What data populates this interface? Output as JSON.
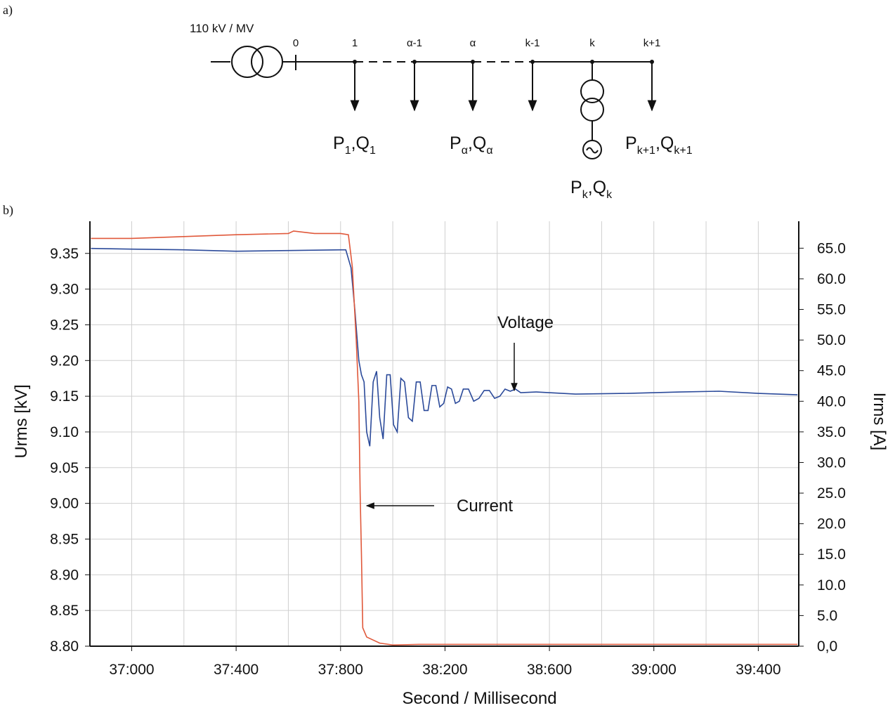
{
  "figure": {
    "panel_a": "a)",
    "panel_b": "b)"
  },
  "diagram": {
    "transformer": "110 kV / MV",
    "nodes": [
      "0",
      "1",
      "α-1",
      "α",
      "k-1",
      "k",
      "k+1"
    ],
    "loads": [
      {
        "p": "P",
        "p_sub": "1",
        "q": ",Q",
        "q_sub": "1"
      },
      {
        "p": "P",
        "p_sub": "α",
        "q": ",Q",
        "q_sub": "α"
      },
      {
        "p": "P",
        "p_sub": "k",
        "q": ",Q",
        "q_sub": "k"
      },
      {
        "p": "P",
        "p_sub": "k+1",
        "q": ",Q",
        "q_sub": "k+1"
      }
    ]
  },
  "chart_data": {
    "type": "line",
    "xlabel": "Second / Millisecond",
    "ylabel": "Urms [kV]",
    "y2label": "Irms [A]",
    "xlim": [
      36840,
      39555
    ],
    "ylim": [
      8.8,
      9.395
    ],
    "y2lim": [
      0,
      69.4
    ],
    "grid": true,
    "xticks": [
      {
        "value": 37000,
        "label": "37:000"
      },
      {
        "value": 37400,
        "label": "37:400"
      },
      {
        "value": 37800,
        "label": "37:800"
      },
      {
        "value": 38200,
        "label": "38:200"
      },
      {
        "value": 38600,
        "label": "38:600"
      },
      {
        "value": 39000,
        "label": "39:000"
      },
      {
        "value": 39400,
        "label": "39:400"
      }
    ],
    "yticks": [
      {
        "value": 8.8,
        "label": "8.80"
      },
      8.85,
      {
        "value": 8.9,
        "label": "8.90"
      },
      8.95,
      {
        "value": 9.0,
        "label": "9.00"
      },
      9.05,
      {
        "value": 9.1,
        "label": "9.10"
      },
      9.15,
      {
        "value": 9.2,
        "label": "9.20"
      },
      9.25,
      {
        "value": 9.3,
        "label": "9.30"
      },
      9.35
    ],
    "y2ticks": [
      {
        "value": 0,
        "label": "0,0"
      },
      {
        "value": 5,
        "label": "5.0"
      },
      {
        "value": 10,
        "label": "10.0"
      },
      {
        "value": 15,
        "label": "15.0"
      },
      {
        "value": 20,
        "label": "20.0"
      },
      {
        "value": 25,
        "label": "25.0"
      },
      {
        "value": 30,
        "label": "30.0"
      },
      {
        "value": 35,
        "label": "35.0"
      },
      {
        "value": 40,
        "label": "40.0"
      },
      {
        "value": 45,
        "label": "45.0"
      },
      {
        "value": 50,
        "label": "50.0"
      },
      {
        "value": 55,
        "label": "55.0"
      },
      {
        "value": 60,
        "label": "60.0"
      },
      {
        "value": 65,
        "label": "65.0"
      }
    ],
    "series": [
      {
        "name": "Voltage",
        "color": "#2b4a9a",
        "axis": "y",
        "x": [
          36844,
          37000,
          37200,
          37400,
          37600,
          37800,
          37820,
          37840,
          37855,
          37870,
          37880,
          37890,
          37900,
          37912,
          37925,
          37938,
          37950,
          37963,
          37977,
          37990,
          38003,
          38017,
          38031,
          38045,
          38060,
          38075,
          38090,
          38105,
          38120,
          38135,
          38150,
          38165,
          38180,
          38195,
          38210,
          38225,
          38240,
          38255,
          38270,
          38290,
          38310,
          38330,
          38350,
          38370,
          38390,
          38410,
          38430,
          38450,
          38470,
          38490,
          38550,
          38700,
          38900,
          39100,
          39250,
          39400,
          39550
        ],
        "values": [
          9.357,
          9.356,
          9.355,
          9.353,
          9.354,
          9.355,
          9.355,
          9.33,
          9.27,
          9.2,
          9.18,
          9.17,
          9.1,
          9.08,
          9.17,
          9.185,
          9.12,
          9.09,
          9.18,
          9.18,
          9.11,
          9.1,
          9.175,
          9.17,
          9.12,
          9.115,
          9.17,
          9.17,
          9.13,
          9.13,
          9.165,
          9.165,
          9.135,
          9.14,
          9.163,
          9.16,
          9.14,
          9.143,
          9.16,
          9.16,
          9.143,
          9.147,
          9.158,
          9.158,
          9.147,
          9.15,
          9.16,
          9.157,
          9.16,
          9.155,
          9.156,
          9.153,
          9.154,
          9.156,
          9.157,
          9.154,
          9.152
        ]
      },
      {
        "name": "Current",
        "color": "#e0583a",
        "axis": "y2",
        "x": [
          36844,
          37000,
          37200,
          37400,
          37600,
          37620,
          37700,
          37800,
          37830,
          37845,
          37860,
          37870,
          37875,
          37880,
          37885,
          37900,
          37950,
          38000,
          38100,
          39550
        ],
        "values": [
          66.6,
          66.6,
          66.9,
          67.2,
          67.4,
          67.8,
          67.4,
          67.4,
          67.2,
          62,
          50,
          40,
          25,
          15,
          3,
          1.5,
          0.5,
          0.2,
          0.3,
          0.3
        ]
      }
    ],
    "annotations": [
      {
        "text": "Voltage"
      },
      {
        "text": "Current"
      }
    ]
  }
}
